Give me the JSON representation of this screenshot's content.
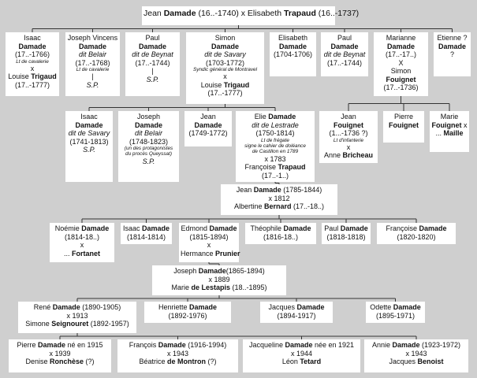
{
  "tree": {
    "root": {
      "lines": [
        [
          {
            "t": "Jean "
          },
          {
            "t": "Damade",
            "b": 1
          },
          {
            "t": " (16..-1740)   x   Elisabeth "
          },
          {
            "t": "Trapaud",
            "b": 1
          },
          {
            "t": " (16..-1737)"
          }
        ]
      ]
    },
    "gen1": [
      {
        "lines": [
          [
            {
              "t": "Isaac"
            }
          ],
          [
            {
              "t": "Damade",
              "b": 1
            }
          ],
          [
            {
              "t": "(17..-1766)"
            }
          ],
          [
            {
              "t": "Lt de cavalerie",
              "s": 1
            }
          ],
          [
            {
              "t": "x"
            }
          ],
          [
            {
              "t": "Louise "
            },
            {
              "t": "Trigaud",
              "b": 1
            }
          ],
          [
            {
              "t": "(17..-1777)"
            }
          ]
        ]
      },
      {
        "lines": [
          [
            {
              "t": "Joseph Vincens"
            }
          ],
          [
            {
              "t": "Damade",
              "b": 1
            }
          ],
          [
            {
              "t": "dit Belair",
              "i": 1
            }
          ],
          [
            {
              "t": "(17..-1768)"
            }
          ],
          [
            {
              "t": "Lt de cavalerie",
              "s": 1
            }
          ],
          [
            {
              "t": "|"
            }
          ],
          [
            {
              "t": "S.P.",
              "i": 1
            }
          ]
        ]
      },
      {
        "lines": [
          [
            {
              "t": "Paul"
            }
          ],
          [
            {
              "t": "Damade",
              "b": 1
            }
          ],
          [
            {
              "t": "dit de Beynat",
              "i": 1
            }
          ],
          [
            {
              "t": "(17..-1744)"
            }
          ],
          [
            {
              "t": "|"
            }
          ],
          [
            {
              "t": "S.P.",
              "i": 1
            }
          ]
        ]
      },
      {
        "lines": [
          [
            {
              "t": "Simon"
            }
          ],
          [
            {
              "t": "Damade",
              "b": 1
            }
          ],
          [
            {
              "t": "dit de Savary",
              "i": 1
            }
          ],
          [
            {
              "t": "(1703-1772)"
            }
          ],
          [
            {
              "t": "Syndic général de Montravel",
              "s": 1
            }
          ],
          [
            {
              "t": "x"
            }
          ],
          [
            {
              "t": "Louise "
            },
            {
              "t": "Trigaud",
              "b": 1
            }
          ],
          [
            {
              "t": "(17..-1777)"
            }
          ]
        ]
      },
      {
        "lines": [
          [
            {
              "t": "Elisabeth"
            }
          ],
          [
            {
              "t": "Damade",
              "b": 1
            }
          ],
          [
            {
              "t": "(1704-1706)"
            }
          ]
        ]
      },
      {
        "lines": [
          [
            {
              "t": "Paul"
            }
          ],
          [
            {
              "t": "Damade",
              "b": 1
            }
          ],
          [
            {
              "t": "dit de Beynat",
              "i": 1
            }
          ],
          [
            {
              "t": "(17..-1744)"
            }
          ]
        ]
      },
      {
        "lines": [
          [
            {
              "t": "Marianne"
            }
          ],
          [
            {
              "t": "Damade",
              "b": 1
            }
          ],
          [
            {
              "t": "(17..-17..)"
            }
          ],
          [
            {
              "t": "X"
            }
          ],
          [
            {
              "t": "Simon"
            }
          ],
          [
            {
              "t": "Fouignet",
              "b": 1
            }
          ],
          [
            {
              "t": "(17..-1736)"
            }
          ]
        ]
      },
      {
        "lines": [
          [
            {
              "t": "Etienne ?"
            }
          ],
          [
            {
              "t": "Damade",
              "b": 1
            }
          ],
          [
            {
              "t": "?"
            }
          ]
        ]
      }
    ],
    "gen2": [
      {
        "lines": [
          [
            {
              "t": "Isaac"
            }
          ],
          [
            {
              "t": "Damade",
              "b": 1
            }
          ],
          [
            {
              "t": "dit de Savary",
              "i": 1
            }
          ],
          [
            {
              "t": "(1741-1813)"
            }
          ],
          [
            {
              "t": " "
            }
          ],
          [
            {
              "t": "S.P.",
              "i": 1
            }
          ]
        ]
      },
      {
        "lines": [
          [
            {
              "t": "Joseph"
            }
          ],
          [
            {
              "t": "Damade",
              "b": 1
            }
          ],
          [
            {
              "t": "dit Belair",
              "i": 1
            }
          ],
          [
            {
              "t": "(1748-1823)"
            }
          ],
          [
            {
              "t": "(un des protagonistes",
              "s": 1
            }
          ],
          [
            {
              "t": "du procès Queyssat)",
              "s": 1
            }
          ],
          [
            {
              "t": " "
            }
          ],
          [
            {
              "t": "S.P.",
              "i": 1
            }
          ]
        ]
      },
      {
        "lines": [
          [
            {
              "t": "Jean"
            }
          ],
          [
            {
              "t": "Damade",
              "b": 1
            }
          ],
          [
            {
              "t": "(1749-1772)"
            }
          ]
        ]
      },
      {
        "lines": [
          [
            {
              "t": "Elie "
            },
            {
              "t": "Damade",
              "b": 1
            }
          ],
          [
            {
              "t": "dit de Lestrade",
              "i": 1
            }
          ],
          [
            {
              "t": "(1750-1814)"
            }
          ],
          [
            {
              "t": "Lt de frégate",
              "s": 1
            }
          ],
          [
            {
              "t": "signe le cahier de doléance",
              "s": 1
            }
          ],
          [
            {
              "t": "de Castillon en 1789",
              "s": 1
            }
          ],
          [
            {
              "t": "x 1783"
            }
          ],
          [
            {
              "t": "Françoise "
            },
            {
              "t": "Trapaud",
              "b": 1
            }
          ],
          [
            {
              "t": "(17..-1..)"
            }
          ]
        ]
      },
      {
        "lines": [
          [
            {
              "t": "Jean"
            }
          ],
          [
            {
              "t": "Fouignet",
              "b": 1
            }
          ],
          [
            {
              "t": "(1...-1736 ?)"
            }
          ],
          [
            {
              "t": "Lt d'infanterie",
              "s": 1
            }
          ],
          [
            {
              "t": "x"
            }
          ],
          [
            {
              "t": "Anne "
            },
            {
              "t": "Bricheau",
              "b": 1
            }
          ]
        ]
      },
      {
        "lines": [
          [
            {
              "t": "Pierre"
            }
          ],
          [
            {
              "t": "Fouignet",
              "b": 1
            }
          ]
        ]
      },
      {
        "lines": [
          [
            {
              "t": "Marie"
            }
          ],
          [
            {
              "t": "Fouignet",
              "b": 1
            },
            {
              "t": " x"
            }
          ],
          [
            {
              "t": "... "
            },
            {
              "t": "Maille",
              "b": 1
            }
          ]
        ]
      }
    ],
    "gen3": {
      "lines": [
        [
          {
            "t": "Jean "
          },
          {
            "t": "Damade",
            "b": 1
          },
          {
            "t": " (1785-1844)"
          }
        ],
        [
          {
            "t": "x 1812"
          }
        ],
        [
          {
            "t": "Albertine "
          },
          {
            "t": "Bernard",
            "b": 1
          },
          {
            "t": " (17..-18..)"
          }
        ]
      ]
    },
    "gen4": [
      {
        "lines": [
          [
            {
              "t": "Noémie "
            },
            {
              "t": "Damade",
              "b": 1
            }
          ],
          [
            {
              "t": "(1814-18..)"
            }
          ],
          [
            {
              "t": "x"
            }
          ],
          [
            {
              "t": "... "
            },
            {
              "t": "Fortanet",
              "b": 1
            }
          ]
        ]
      },
      {
        "lines": [
          [
            {
              "t": "Isaac "
            },
            {
              "t": "Damade",
              "b": 1
            }
          ],
          [
            {
              "t": "(1814-1814)"
            }
          ]
        ]
      },
      {
        "lines": [
          [
            {
              "t": "Edmond "
            },
            {
              "t": "Damade",
              "b": 1
            }
          ],
          [
            {
              "t": "(1815-1894)"
            }
          ],
          [
            {
              "t": "x"
            }
          ],
          [
            {
              "t": "Hermance "
            },
            {
              "t": "Prunier",
              "b": 1
            }
          ]
        ]
      },
      {
        "lines": [
          [
            {
              "t": "Théophile "
            },
            {
              "t": "Damade",
              "b": 1
            }
          ],
          [
            {
              "t": "(1816-18..)"
            }
          ]
        ]
      },
      {
        "lines": [
          [
            {
              "t": "Paul "
            },
            {
              "t": "Damade",
              "b": 1
            }
          ],
          [
            {
              "t": "(1818-1818)"
            }
          ]
        ]
      },
      {
        "lines": [
          [
            {
              "t": "Françoise "
            },
            {
              "t": "Damade",
              "b": 1
            }
          ],
          [
            {
              "t": "(1820-1820)"
            }
          ]
        ]
      }
    ],
    "gen5": {
      "lines": [
        [
          {
            "t": "Joseph "
          },
          {
            "t": "Damade",
            "b": 1
          },
          {
            "t": "(1865-1894)"
          }
        ],
        [
          {
            "t": "x 1889"
          }
        ],
        [
          {
            "t": "Marie "
          },
          {
            "t": "de Lestapis",
            "b": 1
          },
          {
            "t": " (18..-1895)"
          }
        ]
      ]
    },
    "gen6": [
      {
        "lines": [
          [
            {
              "t": "René "
            },
            {
              "t": "Damade",
              "b": 1
            },
            {
              "t": " (1890-1905)"
            }
          ],
          [
            {
              "t": "x 1913"
            }
          ],
          [
            {
              "t": "Simone "
            },
            {
              "t": "Seignouret",
              "b": 1
            },
            {
              "t": " (1892-1957)"
            }
          ]
        ]
      },
      {
        "lines": [
          [
            {
              "t": "Henriette "
            },
            {
              "t": "Damade",
              "b": 1
            }
          ],
          [
            {
              "t": "(1892-1976)"
            }
          ]
        ]
      },
      {
        "lines": [
          [
            {
              "t": "Jacques "
            },
            {
              "t": "Damade",
              "b": 1
            }
          ],
          [
            {
              "t": "(1894-1917)"
            }
          ]
        ]
      },
      {
        "lines": [
          [
            {
              "t": "Odette "
            },
            {
              "t": "Damade",
              "b": 1
            }
          ],
          [
            {
              "t": "(1895-1971)"
            }
          ]
        ]
      }
    ],
    "gen7": [
      {
        "lines": [
          [
            {
              "t": "Pierre "
            },
            {
              "t": "Damade",
              "b": 1
            },
            {
              "t": " né en 1915"
            }
          ],
          [
            {
              "t": "x 1939"
            }
          ],
          [
            {
              "t": "Denise "
            },
            {
              "t": "Ronchèse",
              "b": 1
            },
            {
              "t": " (?)"
            }
          ]
        ]
      },
      {
        "lines": [
          [
            {
              "t": "François "
            },
            {
              "t": "Damade",
              "b": 1
            },
            {
              "t": " (1916-1994)"
            }
          ],
          [
            {
              "t": "x 1943"
            }
          ],
          [
            {
              "t": "Béatrice "
            },
            {
              "t": "de Montron",
              "b": 1
            },
            {
              "t": " (?)"
            }
          ]
        ]
      },
      {
        "lines": [
          [
            {
              "t": "Jacqueline "
            },
            {
              "t": "Damade",
              "b": 1
            },
            {
              "t": " née en 1921"
            }
          ],
          [
            {
              "t": "x 1944"
            }
          ],
          [
            {
              "t": "Léon "
            },
            {
              "t": "Tetard",
              "b": 1
            }
          ]
        ]
      },
      {
        "lines": [
          [
            {
              "t": "Annie "
            },
            {
              "t": "Damade",
              "b": 1
            },
            {
              "t": " (1923-1972)"
            }
          ],
          [
            {
              "t": "x 1943"
            }
          ],
          [
            {
              "t": "Jacques "
            },
            {
              "t": "Benoist",
              "b": 1
            }
          ]
        ]
      }
    ]
  }
}
